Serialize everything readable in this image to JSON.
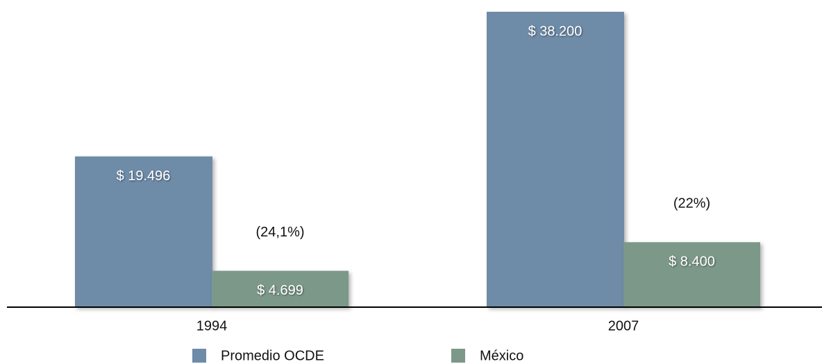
{
  "chart_data": {
    "type": "bar",
    "categories": [
      "1994",
      "2007"
    ],
    "series": [
      {
        "name": "Promedio OCDE",
        "color": "#6e8ba8",
        "values": [
          19496,
          38200
        ],
        "value_labels": [
          "$ 19.496",
          "$ 38.200"
        ]
      },
      {
        "name": "México",
        "color": "#7c9888",
        "values": [
          4699,
          8400
        ],
        "value_labels": [
          "$ 4.699",
          "$ 8.400"
        ]
      }
    ],
    "annotations": [
      "(24,1%)",
      "(22%)"
    ]
  }
}
